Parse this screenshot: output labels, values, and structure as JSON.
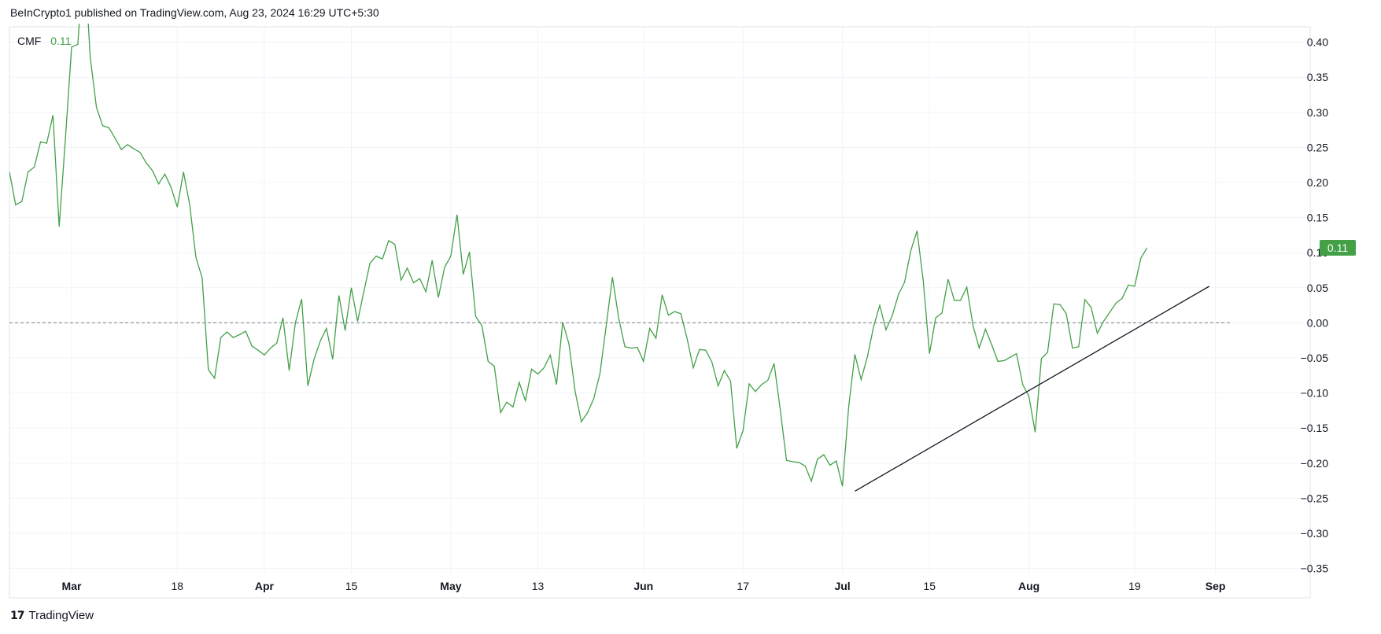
{
  "header": {
    "publisher_line": "BeInCrypto1 published on TradingView.com, Aug 23, 2024 16:29 UTC+5:30"
  },
  "legend": {
    "name": "CMF",
    "value": "0.11"
  },
  "footer": {
    "brand": "TradingView",
    "logo_text": "17"
  },
  "colors": {
    "line": "#43a047",
    "badge": "#43a047",
    "trendline": "#131722",
    "grid": "#f0f3fa",
    "border": "#e0e3eb",
    "zero_line": "#787b86"
  },
  "chart_data": {
    "type": "line",
    "title": "",
    "series": [
      {
        "name": "CMF",
        "values": [
          0.215,
          0.168,
          0.173,
          0.215,
          0.222,
          0.258,
          0.256,
          0.296,
          0.137,
          0.262,
          0.393,
          0.397,
          0.53,
          0.378,
          0.307,
          0.281,
          0.278,
          0.263,
          0.247,
          0.254,
          0.248,
          0.243,
          0.228,
          0.217,
          0.198,
          0.212,
          0.193,
          0.165,
          0.215,
          0.168,
          0.093,
          0.064,
          -0.067,
          -0.079,
          -0.021,
          -0.013,
          -0.021,
          -0.017,
          -0.012,
          -0.033,
          -0.039,
          -0.046,
          -0.036,
          -0.029,
          0.007,
          -0.068,
          0.0,
          0.034,
          -0.09,
          -0.052,
          -0.026,
          -0.008,
          -0.052,
          0.039,
          -0.011,
          0.05,
          0.002,
          0.044,
          0.085,
          0.095,
          0.091,
          0.117,
          0.112,
          0.061,
          0.078,
          0.057,
          0.063,
          0.044,
          0.089,
          0.036,
          0.079,
          0.095,
          0.154,
          0.069,
          0.101,
          0.009,
          -0.004,
          -0.055,
          -0.062,
          -0.128,
          -0.113,
          -0.12,
          -0.085,
          -0.111,
          -0.066,
          -0.073,
          -0.064,
          -0.046,
          -0.088,
          0.001,
          -0.03,
          -0.098,
          -0.141,
          -0.128,
          -0.108,
          -0.072,
          -0.004,
          0.065,
          0.007,
          -0.034,
          -0.036,
          -0.035,
          -0.055,
          -0.008,
          -0.022,
          0.04,
          0.011,
          0.016,
          0.013,
          -0.022,
          -0.064,
          -0.038,
          -0.039,
          -0.056,
          -0.09,
          -0.068,
          -0.083,
          -0.179,
          -0.154,
          -0.087,
          -0.098,
          -0.088,
          -0.082,
          -0.058,
          -0.124,
          -0.196,
          -0.198,
          -0.199,
          -0.204,
          -0.226,
          -0.194,
          -0.188,
          -0.203,
          -0.197,
          -0.233,
          -0.12,
          -0.045,
          -0.081,
          -0.049,
          -0.006,
          0.025,
          -0.01,
          0.01,
          0.04,
          0.058,
          0.103,
          0.131,
          0.06,
          -0.044,
          0.007,
          0.014,
          0.062,
          0.032,
          0.032,
          0.051,
          -0.004,
          -0.036,
          -0.009,
          -0.031,
          -0.055,
          -0.054,
          -0.049,
          -0.044,
          -0.088,
          -0.105,
          -0.156,
          -0.051,
          -0.042,
          0.027,
          0.026,
          0.013,
          -0.036,
          -0.034,
          0.033,
          0.022,
          -0.015,
          0.002,
          0.015,
          0.028,
          0.035,
          0.054,
          0.052,
          0.092,
          0.107
        ]
      }
    ],
    "trendline": {
      "from": {
        "index": 136,
        "y": -0.24
      },
      "to": {
        "index": 193,
        "y": 0.052
      }
    },
    "x_tick_labels": [
      "Mar",
      "18",
      "Apr",
      "15",
      "May",
      "13",
      "Jun",
      "17",
      "Jul",
      "15",
      "Aug",
      "19",
      "Sep"
    ],
    "x_tick_indices": [
      10,
      27,
      41,
      55,
      71,
      85,
      102,
      118,
      134,
      148,
      164,
      181,
      194
    ],
    "y_ticks": [
      0.4,
      0.35,
      0.3,
      0.25,
      0.2,
      0.15,
      0.1,
      0.05,
      0.0,
      -0.05,
      -0.1,
      -0.15,
      -0.2,
      -0.25,
      -0.3,
      -0.35
    ],
    "y_tick_labels": [
      "0.40",
      "0.35",
      "0.30",
      "0.25",
      "0.20",
      "0.15",
      "0.10",
      "0.05",
      "0.00",
      "−0.05",
      "−0.10",
      "−0.15",
      "−0.20",
      "−0.25",
      "−0.30",
      "−0.35"
    ],
    "ylim": [
      -0.392,
      0.422
    ],
    "x_count": 198,
    "zero_line": 0.0,
    "last_value_badge": "0.11",
    "grid": true
  }
}
